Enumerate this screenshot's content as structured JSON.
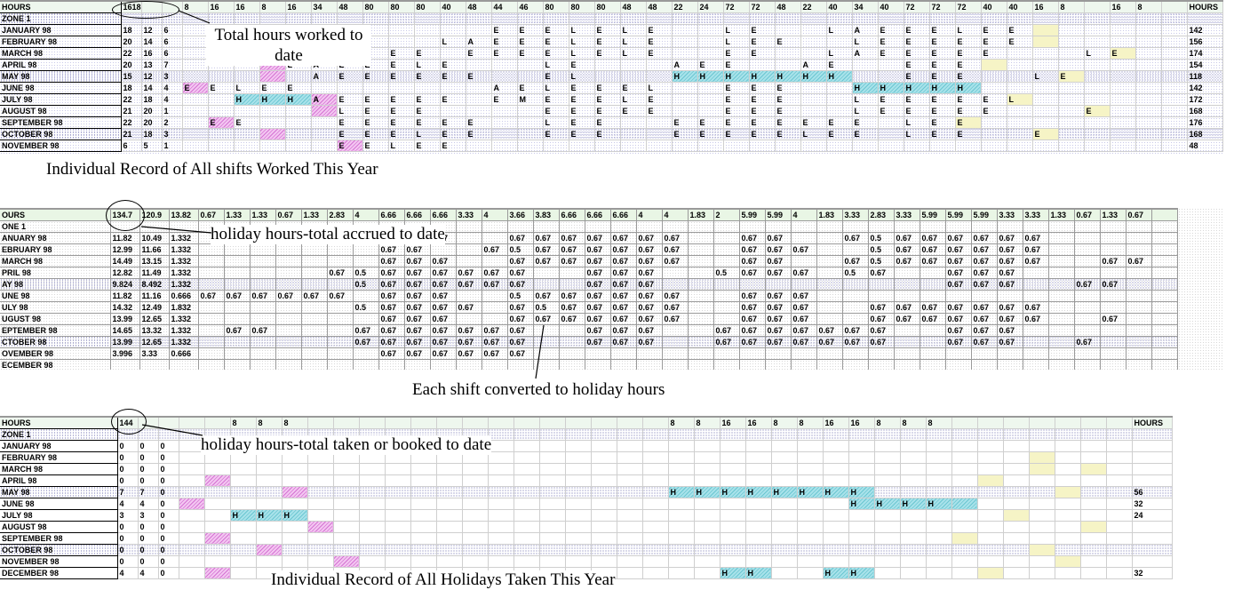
{
  "sheet1": {
    "header": [
      "HOURS",
      "1618",
      "",
      "",
      "8",
      "16",
      "16",
      "8",
      "16",
      "34",
      "48",
      "80",
      "80",
      "80",
      "40",
      "48",
      "44",
      "46",
      "80",
      "80",
      "80",
      "48",
      "48",
      "22",
      "24",
      "72",
      "72",
      "48",
      "22",
      "40",
      "34",
      "40",
      "72",
      "72",
      "72",
      "40",
      "40",
      "16",
      "8",
      "",
      "16",
      "8",
      "",
      "HOURS"
    ],
    "zone": "ZONE 1",
    "rows": [
      {
        "m": "JANUARY 98",
        "a": "18",
        "b": "12",
        "c": "6",
        "cells": {
          "11": "E",
          "16": "E",
          "17": "E",
          "18": "E",
          "19": "L",
          "20": "E",
          "21": "L",
          "22": "E",
          "25": "L",
          "26": "E",
          "29": "L",
          "30": "A",
          "31": "E",
          "32": "E",
          "33": "E",
          "34": "L",
          "35": "E",
          "36": "E"
        },
        "t": "142"
      },
      {
        "m": "FEBRUARY 98",
        "a": "20",
        "b": "14",
        "c": "6",
        "cells": {
          "10": "L",
          "11": "E",
          "14": "L",
          "15": "A",
          "16": "E",
          "17": "E",
          "18": "E",
          "19": "L",
          "20": "E",
          "21": "L",
          "22": "E",
          "25": "L",
          "26": "E",
          "27": "E",
          "30": "L",
          "31": "E",
          "32": "E",
          "33": "E",
          "34": "E",
          "35": "E",
          "36": "E"
        },
        "t": "156"
      },
      {
        "m": "MARCH 98",
        "a": "22",
        "b": "16",
        "c": "6",
        "cells": {
          "10": "E",
          "11": "E",
          "12": "E",
          "13": "E",
          "15": "E",
          "16": "E",
          "17": "E",
          "18": "E",
          "19": "L",
          "20": "E",
          "21": "L",
          "22": "E",
          "25": "E",
          "26": "E",
          "29": "L",
          "30": "A",
          "31": "E",
          "32": "E",
          "33": "E",
          "34": "E",
          "35": "E",
          "39": "L",
          "40": "E"
        },
        "t": "174"
      },
      {
        "m": "APRIL 98",
        "a": "20",
        "b": "13",
        "c": "7",
        "cells": {
          "8": "L",
          "9": "A",
          "10": "E",
          "11": "E",
          "12": "E",
          "13": "L",
          "14": "E",
          "18": "L",
          "19": "E",
          "23": "A",
          "24": "E",
          "25": "E",
          "28": "A",
          "29": "E",
          "32": "E",
          "33": "E",
          "34": "E"
        },
        "t": "154"
      },
      {
        "m": "MAY 98",
        "a": "15",
        "b": "12",
        "c": "3",
        "cells": {
          "9": "A",
          "10": "E",
          "11": "E",
          "12": "E",
          "13": "E",
          "14": "E",
          "15": "E",
          "18": "E",
          "19": "L",
          "23": "H",
          "24": "H",
          "25": "H",
          "26": "H",
          "27": "H",
          "28": "H",
          "29": "H",
          "32": "E",
          "33": "E",
          "34": "E",
          "37": "L",
          "38": "E"
        },
        "t": "118"
      },
      {
        "m": "JUNE 98",
        "a": "18",
        "b": "14",
        "c": "4",
        "cells": {
          "4": "E",
          "5": "E",
          "6": "L",
          "7": "E",
          "8": "E",
          "16": "A",
          "17": "E",
          "18": "L",
          "19": "E",
          "20": "E",
          "21": "E",
          "22": "L",
          "25": "E",
          "26": "E",
          "27": "E",
          "30": "H",
          "31": "H",
          "32": "H",
          "33": "H",
          "34": "H"
        },
        "t": "142"
      },
      {
        "m": "JULY 98",
        "a": "22",
        "b": "18",
        "c": "4",
        "cells": {
          "6": "H",
          "7": "H",
          "8": "H",
          "9": "A",
          "10": "E",
          "11": "E",
          "12": "E",
          "13": "E",
          "14": "E",
          "16": "E",
          "17": "M",
          "18": "E",
          "19": "E",
          "20": "E",
          "21": "L",
          "22": "E",
          "25": "E",
          "26": "E",
          "27": "E",
          "30": "L",
          "31": "E",
          "32": "E",
          "33": "E",
          "34": "E",
          "35": "E",
          "36": "L"
        },
        "t": "172"
      },
      {
        "m": "AUGUST 98",
        "a": "21",
        "b": "20",
        "c": "1",
        "cells": {
          "10": "L",
          "11": "E",
          "12": "E",
          "13": "E",
          "18": "E",
          "19": "E",
          "20": "E",
          "21": "E",
          "22": "E",
          "25": "E",
          "26": "E",
          "27": "E",
          "30": "L",
          "31": "E",
          "32": "E",
          "33": "E",
          "34": "E",
          "35": "E",
          "39": "E"
        },
        "t": "168"
      },
      {
        "m": "SEPTEMBER 98",
        "a": "22",
        "b": "20",
        "c": "2",
        "cells": {
          "5": "E",
          "6": "E",
          "10": "E",
          "11": "E",
          "12": "E",
          "13": "E",
          "14": "E",
          "15": "E",
          "18": "L",
          "19": "E",
          "20": "E",
          "23": "E",
          "24": "E",
          "25": "E",
          "26": "E",
          "27": "E",
          "28": "E",
          "29": "E",
          "30": "E",
          "32": "L",
          "33": "E",
          "34": "E"
        },
        "t": "176"
      },
      {
        "m": "OCTOBER 98",
        "a": "21",
        "b": "18",
        "c": "3",
        "cells": {
          "10": "E",
          "11": "E",
          "12": "E",
          "13": "L",
          "14": "E",
          "15": "E",
          "18": "E",
          "19": "E",
          "20": "E",
          "23": "E",
          "24": "E",
          "25": "E",
          "26": "E",
          "27": "E",
          "28": "L",
          "29": "E",
          "30": "E",
          "32": "L",
          "33": "E",
          "34": "E",
          "37": "E"
        },
        "t": "168"
      },
      {
        "m": "NOVEMBER 98",
        "a": "6",
        "b": "5",
        "c": "1",
        "cells": {
          "10": "E",
          "11": "E",
          "12": "L",
          "13": "E",
          "14": "E"
        },
        "t": "48"
      }
    ],
    "caption": "Individual Record of All shifts Worked This Year",
    "callout": "Total hours worked to date"
  },
  "sheet2": {
    "header": [
      "OURS",
      "134.7",
      "120.9",
      "13.82",
      "0.67",
      "1.33",
      "1.33",
      "0.67",
      "1.33",
      "2.83",
      "4",
      "6.66",
      "6.66",
      "6.66",
      "3.33",
      "4",
      "3.66",
      "3.83",
      "6.66",
      "6.66",
      "6.66",
      "4",
      "4",
      "1.83",
      "2",
      "5.99",
      "5.99",
      "4",
      "1.83",
      "3.33",
      "2.83",
      "3.33",
      "5.99",
      "5.99",
      "5.99",
      "3.33",
      "3.33",
      "1.33",
      "0.67",
      "1.33",
      "0.67",
      ""
    ],
    "zone": "ONE 1",
    "rows": [
      {
        "m": "ANUARY 98",
        "a": "11.82",
        "b": "10.49",
        "c": "1.332",
        "cells": {
          "13": "0.67",
          "16": "0.67",
          "17": "0.67",
          "18": "0.67",
          "19": "0.67",
          "20": "0.67",
          "21": "0.67",
          "22": "0.67",
          "25": "0.67",
          "26": "0.67",
          "29": "0.67",
          "30": "0.5",
          "31": "0.67",
          "32": "0.67",
          "33": "0.67",
          "34": "0.67",
          "35": "0.67",
          "36": "0.67"
        }
      },
      {
        "m": "EBRUARY 98",
        "a": "12.99",
        "b": "11.66",
        "c": "1.332",
        "cells": {
          "11": "0.67",
          "12": "0.67",
          "15": "0.67",
          "16": "0.5",
          "17": "0.67",
          "18": "0.67",
          "19": "0.67",
          "20": "0.67",
          "21": "0.67",
          "22": "0.67",
          "25": "0.67",
          "26": "0.67",
          "27": "0.67",
          "30": "0.5",
          "31": "0.67",
          "32": "0.67",
          "33": "0.67",
          "34": "0.67",
          "35": "0.67",
          "36": "0.67"
        }
      },
      {
        "m": "MARCH 98",
        "a": "14.49",
        "b": "13.15",
        "c": "1.332",
        "cells": {
          "11": "0.67",
          "12": "0.67",
          "13": "0.67",
          "16": "0.67",
          "17": "0.67",
          "18": "0.67",
          "19": "0.67",
          "20": "0.67",
          "21": "0.67",
          "22": "0.67",
          "25": "0.67",
          "26": "0.67",
          "29": "0.67",
          "30": "0.5",
          "31": "0.67",
          "32": "0.67",
          "33": "0.67",
          "34": "0.67",
          "35": "0.67",
          "36": "0.67",
          "39": "0.67",
          "40": "0.67"
        }
      },
      {
        "m": "PRIL 98",
        "a": "12.82",
        "b": "11.49",
        "c": "1.332",
        "cells": {
          "9": "0.67",
          "10": "0.5",
          "11": "0.67",
          "12": "0.67",
          "13": "0.67",
          "14": "0.67",
          "15": "0.67",
          "16": "0.67",
          "19": "0.67",
          "20": "0.67",
          "21": "0.67",
          "24": "0.5",
          "25": "0.67",
          "26": "0.67",
          "27": "0.67",
          "29": "0.5",
          "30": "0.67",
          "33": "0.67",
          "34": "0.67",
          "35": "0.67"
        }
      },
      {
        "m": "AY 98",
        "a": "9.824",
        "b": "8.492",
        "c": "1.332",
        "cells": {
          "10": "0.5",
          "11": "0.67",
          "12": "0.67",
          "13": "0.67",
          "14": "0.67",
          "15": "0.67",
          "16": "0.67",
          "19": "0.67",
          "20": "0.67",
          "21": "0.67",
          "33": "0.67",
          "34": "0.67",
          "35": "0.67",
          "38": "0.67",
          "39": "0.67"
        }
      },
      {
        "m": "UNE 98",
        "a": "11.82",
        "b": "11.16",
        "c": "0.666",
        "cells": {
          "4": "0.67",
          "5": "0.67",
          "6": "0.67",
          "7": "0.67",
          "8": "0.67",
          "9": "0.67",
          "11": "0.67",
          "12": "0.67",
          "13": "0.67",
          "16": "0.5",
          "17": "0.67",
          "18": "0.67",
          "19": "0.67",
          "20": "0.67",
          "21": "0.67",
          "22": "0.67",
          "25": "0.67",
          "26": "0.67",
          "27": "0.67"
        }
      },
      {
        "m": "ULY 98",
        "a": "14.32",
        "b": "12.49",
        "c": "1.832",
        "cells": {
          "10": "0.5",
          "11": "0.67",
          "12": "0.67",
          "13": "0.67",
          "14": "0.67",
          "16": "0.67",
          "17": "0.5",
          "18": "0.67",
          "19": "0.67",
          "20": "0.67",
          "21": "0.67",
          "22": "0.67",
          "25": "0.67",
          "26": "0.67",
          "27": "0.67",
          "30": "0.67",
          "31": "0.67",
          "32": "0.67",
          "33": "0.67",
          "34": "0.67",
          "35": "0.67",
          "36": "0.67"
        }
      },
      {
        "m": "UGUST 98",
        "a": "13.99",
        "b": "12.65",
        "c": "1.332",
        "cells": {
          "11": "0.67",
          "12": "0.67",
          "13": "0.67",
          "16": "0.67",
          "17": "0.67",
          "18": "0.67",
          "19": "0.67",
          "20": "0.67",
          "21": "0.67",
          "22": "0.67",
          "25": "0.67",
          "26": "0.67",
          "27": "0.67",
          "30": "0.67",
          "31": "0.67",
          "32": "0.67",
          "33": "0.67",
          "34": "0.67",
          "35": "0.67",
          "36": "0.67",
          "39": "0.67"
        }
      },
      {
        "m": "EPTEMBER 98",
        "a": "14.65",
        "b": "13.32",
        "c": "1.332",
        "cells": {
          "5": "0.67",
          "6": "0.67",
          "10": "0.67",
          "11": "0.67",
          "12": "0.67",
          "13": "0.67",
          "14": "0.67",
          "15": "0.67",
          "16": "0.67",
          "19": "0.67",
          "20": "0.67",
          "21": "0.67",
          "24": "0.67",
          "25": "0.67",
          "26": "0.67",
          "27": "0.67",
          "28": "0.67",
          "29": "0.67",
          "30": "0.67",
          "33": "0.67",
          "34": "0.67",
          "35": "0.67"
        }
      },
      {
        "m": "CTOBER 98",
        "a": "13.99",
        "b": "12.65",
        "c": "1.332",
        "cells": {
          "10": "0.67",
          "11": "0.67",
          "12": "0.67",
          "13": "0.67",
          "14": "0.67",
          "15": "0.67",
          "16": "0.67",
          "19": "0.67",
          "20": "0.67",
          "21": "0.67",
          "24": "0.67",
          "25": "0.67",
          "26": "0.67",
          "27": "0.67",
          "28": "0.67",
          "29": "0.67",
          "30": "0.67",
          "33": "0.67",
          "34": "0.67",
          "35": "0.67",
          "38": "0.67"
        }
      },
      {
        "m": "OVEMBER 98",
        "a": "3.996",
        "b": "3.33",
        "c": "0.666",
        "cells": {
          "11": "0.67",
          "12": "0.67",
          "13": "0.67",
          "14": "0.67",
          "15": "0.67",
          "16": "0.67"
        }
      },
      {
        "m": "ECEMBER 98",
        "a": "",
        "b": "",
        "c": "",
        "cells": {}
      }
    ],
    "caption": "Each shift converted to holiday hours",
    "callout": "holiday hours-total accrued to date"
  },
  "sheet3": {
    "header": [
      "HOURS",
      "144",
      "",
      "",
      "",
      "",
      "8",
      "8",
      "8",
      "",
      "",
      "",
      "",
      "",
      "",
      "",
      "",
      "",
      "",
      "",
      "",
      "",
      "",
      "8",
      "8",
      "16",
      "16",
      "8",
      "8",
      "16",
      "16",
      "8",
      "8",
      "8",
      "",
      "",
      "",
      "",
      "",
      "",
      "",
      "HOURS"
    ],
    "zone": "ZONE 1",
    "rows": [
      {
        "m": "JANUARY 98",
        "a": "0",
        "b": "0",
        "c": "0",
        "cells": {},
        "t": ""
      },
      {
        "m": "FEBRUARY 98",
        "a": "0",
        "b": "0",
        "c": "0",
        "cells": {},
        "t": ""
      },
      {
        "m": "MARCH 98",
        "a": "0",
        "b": "0",
        "c": "0",
        "cells": {},
        "t": ""
      },
      {
        "m": "APRIL 98",
        "a": "0",
        "b": "0",
        "c": "0",
        "cells": {},
        "t": ""
      },
      {
        "m": "MAY 98",
        "a": "7",
        "b": "7",
        "c": "0",
        "cells": {
          "23": "H",
          "24": "H",
          "25": "H",
          "26": "H",
          "27": "H",
          "28": "H",
          "29": "H",
          "30": "H"
        },
        "t": "56"
      },
      {
        "m": "JUNE 98",
        "a": "4",
        "b": "4",
        "c": "0",
        "cells": {
          "30": "H",
          "31": "H",
          "32": "H",
          "33": "H"
        },
        "t": "32"
      },
      {
        "m": "JULY 98",
        "a": "3",
        "b": "3",
        "c": "0",
        "cells": {
          "6": "H",
          "7": "H",
          "8": "H"
        },
        "t": "24"
      },
      {
        "m": "AUGUST 98",
        "a": "0",
        "b": "0",
        "c": "0",
        "cells": {},
        "t": ""
      },
      {
        "m": "SEPTEMBER 98",
        "a": "0",
        "b": "0",
        "c": "0",
        "cells": {},
        "t": ""
      },
      {
        "m": "OCTOBER 98",
        "a": "0",
        "b": "0",
        "c": "0",
        "cells": {},
        "t": ""
      },
      {
        "m": "NOVEMBER 98",
        "a": "0",
        "b": "0",
        "c": "0",
        "cells": {},
        "t": ""
      },
      {
        "m": "DECEMBER 98",
        "a": "4",
        "b": "4",
        "c": "0",
        "cells": {
          "25": "H",
          "26": "H",
          "29": "H",
          "30": "H"
        },
        "t": "32"
      }
    ],
    "caption": "Individual Record of All Holidays Taken This Year",
    "callout": "holiday hours-total taken or booked to date"
  },
  "colors": {
    "holiday_cyan": "#6bc6d1",
    "booked_pink": "#d573d3",
    "note_yellow": "#f6f4c6",
    "header_green": "#eef7ee",
    "dot_blue": "#7e7eb8"
  }
}
